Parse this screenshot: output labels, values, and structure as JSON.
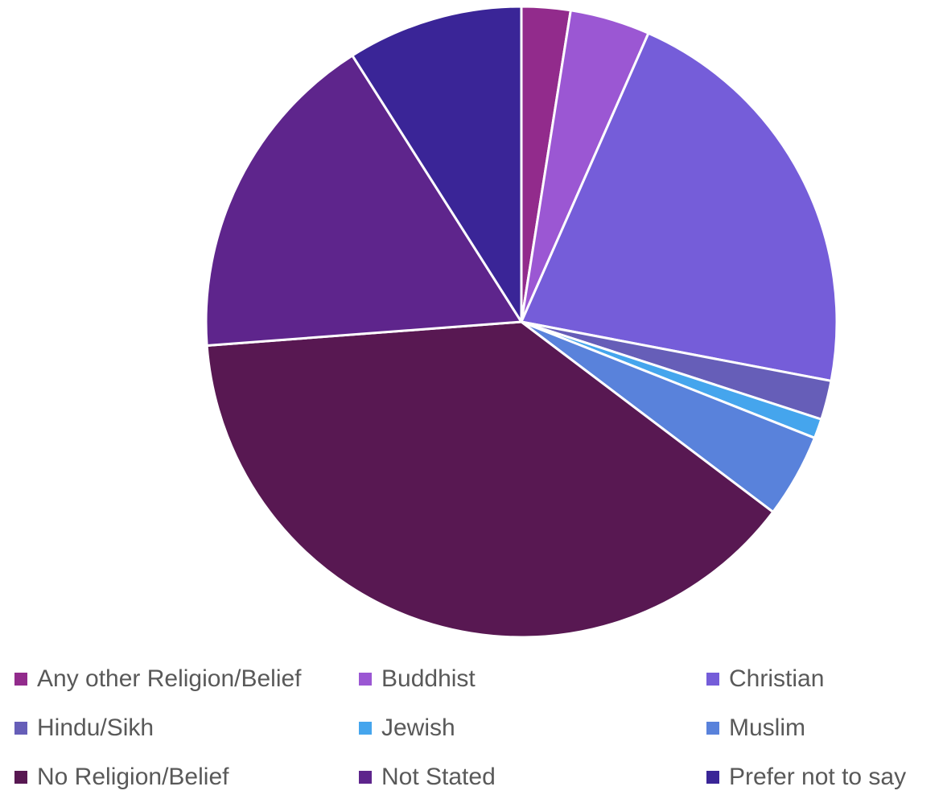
{
  "chart_data": {
    "type": "pie",
    "title": "",
    "start_angle_deg": 0,
    "direction": "clockwise",
    "legend_position": "bottom",
    "slices": [
      {
        "label": "Any other Religion/Belief",
        "value": 2.5,
        "color": "#922B8C"
      },
      {
        "label": "Buddhist",
        "value": 4.1,
        "color": "#9B57D3"
      },
      {
        "label": "Christian",
        "value": 21.4,
        "color": "#755DD9"
      },
      {
        "label": "Hindu/Sikh",
        "value": 2.0,
        "color": "#665EB8"
      },
      {
        "label": "Jewish",
        "value": 1.0,
        "color": "#45A5ED"
      },
      {
        "label": "Muslim",
        "value": 4.3,
        "color": "#5982DB"
      },
      {
        "label": "No Religion/Belief",
        "value": 38.5,
        "color": "#581852"
      },
      {
        "label": "Not Stated",
        "value": 17.2,
        "color": "#5E258C"
      },
      {
        "label": "Prefer not to say",
        "value": 9.0,
        "color": "#3A2597"
      }
    ]
  }
}
